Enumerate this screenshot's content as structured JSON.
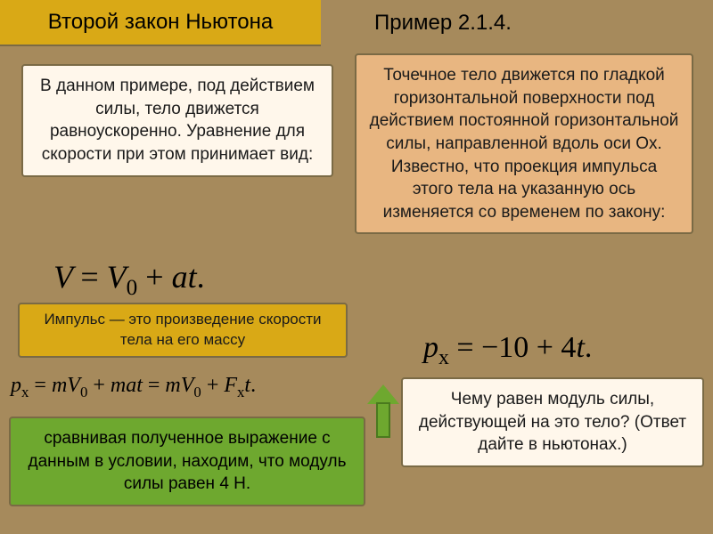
{
  "title": {
    "left": "Второй закон Ньютона",
    "right": "Пример 2.1.4."
  },
  "left_explanation": "В данном примере, под действием силы, тело движется равноускоренно. Уравнение для скорости при этом принимает вид:",
  "problem": "Точечное тело движется по гладкой горизонтальной поверхности под действием постоянной горизонтальной силы, направленной вдоль оси Ox. Известно, что проекция импульса этого тела на указанную ось изменяется со временем по закону:",
  "formula_velocity": "V = V₀ + at.",
  "impulse_def": "Импульс — это произведение скорости тела на его массу",
  "formula_momentum_law": "pₓ = −10 + 4t.",
  "formula_derivation": "pₓ = mV₀ + mat = mV₀ + Fₓt.",
  "comparison": "сравнивая полученное выражение с данным в условии, находим, что модуль силы равен 4 Н.",
  "question": "Чему равен модуль силы, действующей на это тело? (Ответ дайте в ньютонах.)",
  "colors": {
    "page_bg": "#a68a5c",
    "header_bg": "#d9a916",
    "cream_box": "#fff7eb",
    "orange_box": "#e8b681",
    "green_box": "#6ea82f",
    "border": "#7a6a45"
  },
  "fonts": {
    "body_family": "Arial",
    "formula_family": "Times New Roman",
    "title_size_pt": 18,
    "box_size_pt": 14,
    "formula_large_pt": 27,
    "formula_small_pt": 18
  }
}
